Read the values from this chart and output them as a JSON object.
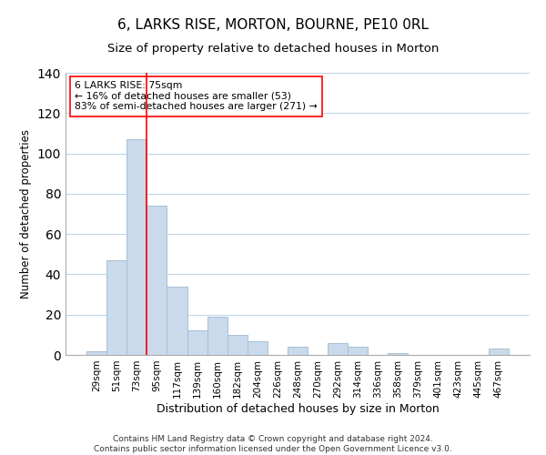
{
  "title": "6, LARKS RISE, MORTON, BOURNE, PE10 0RL",
  "subtitle": "Size of property relative to detached houses in Morton",
  "xlabel": "Distribution of detached houses by size in Morton",
  "ylabel": "Number of detached properties",
  "categories": [
    "29sqm",
    "51sqm",
    "73sqm",
    "95sqm",
    "117sqm",
    "139sqm",
    "160sqm",
    "182sqm",
    "204sqm",
    "226sqm",
    "248sqm",
    "270sqm",
    "292sqm",
    "314sqm",
    "336sqm",
    "358sqm",
    "379sqm",
    "401sqm",
    "423sqm",
    "445sqm",
    "467sqm"
  ],
  "values": [
    2,
    47,
    107,
    74,
    34,
    12,
    19,
    10,
    7,
    0,
    4,
    0,
    6,
    4,
    0,
    1,
    0,
    0,
    0,
    0,
    3
  ],
  "bar_color": "#c8daeb",
  "bar_edge_color": "#a8bfd4",
  "ylim": [
    0,
    140
  ],
  "yticks": [
    0,
    20,
    40,
    60,
    80,
    100,
    120,
    140
  ],
  "property_line_index": 2,
  "annotation_title": "6 LARKS RISE: 75sqm",
  "annotation_line1": "← 16% of detached houses are smaller (53)",
  "annotation_line2": "83% of semi-detached houses are larger (271) →",
  "footer_line1": "Contains HM Land Registry data © Crown copyright and database right 2024.",
  "footer_line2": "Contains public sector information licensed under the Open Government Licence v3.0.",
  "grid_color": "#b8d4e8",
  "title_fontsize": 11,
  "subtitle_fontsize": 9.5,
  "xlabel_fontsize": 9,
  "ylabel_fontsize": 8.5,
  "tick_fontsize": 7.5,
  "footer_fontsize": 6.5
}
